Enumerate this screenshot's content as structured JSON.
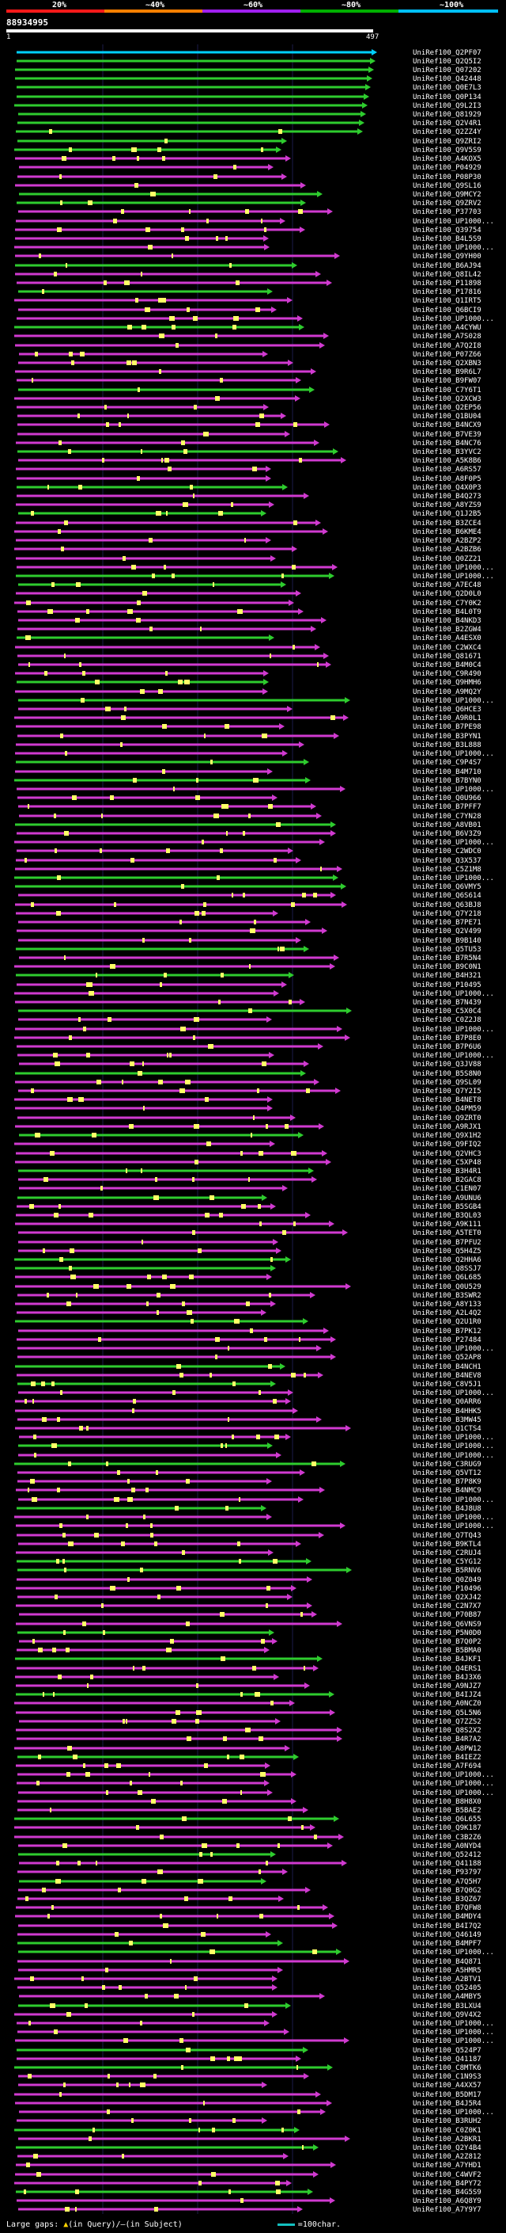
{
  "legend": {
    "marks": [
      "20%",
      "~40%",
      "~60%",
      "~80%",
      "~100%"
    ],
    "colors": [
      "#ff1a1a",
      "#ff8000",
      "#a020f0",
      "#00b000",
      "#00c0ff"
    ]
  },
  "query": {
    "id": "88934995",
    "start": "1",
    "end": "497"
  },
  "footer": {
    "gaps_text": "Large gaps: ",
    "query_glyph": "▲",
    "query_text": "(in Query)/",
    "subject_glyph": "—",
    "subject_text": "(in Subject)",
    "scale_text": "=100char."
  },
  "hit_colors": {
    "top": "#00d0ff",
    "green": "#2ecc2e",
    "magenta": "#d03ad0",
    "insert_mark": "#ffff66"
  },
  "hits": [
    "UniRef100_Q2PF07",
    "UniRef100_Q2Q5I2",
    "UniRef100_Q07202",
    "UniRef100_Q42448",
    "UniRef100_Q0E7L3",
    "UniRef100_Q0P134",
    "UniRef100_Q9L2I3",
    "UniRef100_Q81929",
    "UniRef100_Q2V4R1",
    "UniRef100_Q2ZZ4Y",
    "UniRef100_Q9ZRI2",
    "UniRef100_Q9V5S9",
    "UniRef100_A4KOX5",
    "UniRef100_P04929",
    "UniRef100_P08P30",
    "UniRef100_Q9SL16",
    "UniRef100_Q9MCY2",
    "UniRef100_Q9ZRV2",
    "UniRef100_P37703",
    "UniRef100_UP1000...",
    "UniRef100_Q39754",
    "UniRef100_B4L5S9",
    "UniRef100_UP1000...",
    "UniRef100_Q9YH00",
    "UniRef100_B6AJ94",
    "UniRef100_Q8IL42",
    "UniRef100_P11898",
    "UniRef100_P17816",
    "UniRef100_Q1IRT5",
    "UniRef100_Q6BCI9",
    "UniRef100_UP1000...",
    "UniRef100_A4CYWU",
    "UniRef100_A7S028",
    "UniRef100_A7Q2I8",
    "UniRef100_P07Z66",
    "UniRef100_Q2XBN3",
    "UniRef100_B9R6L7",
    "UniRef100_B9FW07",
    "UniRef100_C7Y6T1",
    "UniRef100_Q2XCW3",
    "UniRef100_Q2EP56",
    "UniRef100_Q1BU04",
    "UniRef100_B4NCX9",
    "UniRef100_B7VE39",
    "UniRef100_B4NC76",
    "UniRef100_B3YVC2",
    "UniRef100_A5K8B6",
    "UniRef100_A6RS57",
    "UniRef100_A8F0P5",
    "UniRef100_Q4X0P3",
    "UniRef100_B4Q273",
    "UniRef100_A8YZS9",
    "UniRef100_Q1J2B5",
    "UniRef100_B3ZCE4",
    "UniRef100_B6KME4",
    "UniRef100_A2BZP2",
    "UniRef100_A2BZB6",
    "UniRef100_Q0ZZ21",
    "UniRef100_UP1000...",
    "UniRef100_UP1000...",
    "UniRef100_A7EC48",
    "UniRef100_Q2D0L0",
    "UniRef100_C7Y0K2",
    "UniRef100_B4L0T9",
    "UniRef100_B4NKD3",
    "UniRef100_B2ZGW4",
    "UniRef100_A4ESX0",
    "UniRef100_C2WXC4",
    "UniRef100_Q81671",
    "UniRef100_B4M0C4",
    "UniRef100_C9R490",
    "UniRef100_Q9HMH6",
    "UniRef100_A9MQ2Y",
    "UniRef100_UP1000...",
    "UniRef100_Q6HCE3",
    "UniRef100_A9R0L1",
    "UniRef100_B7PE98",
    "UniRef100_B3PYN1",
    "UniRef100_B3L888",
    "UniRef100_UP1000...",
    "UniRef100_C9P4S7",
    "UniRef100_B4M710",
    "UniRef100_B7BYN0",
    "UniRef100_UP1000...",
    "UniRef100_Q0U966",
    "UniRef100_B7PFF7",
    "UniRef100_C7YN28",
    "UniRef100_A8VB01",
    "UniRef100_B6V3Z9",
    "UniRef100_UP1000...",
    "UniRef100_C2WDC0",
    "UniRef100_Q3X537",
    "UniRef100_C5Z1M8",
    "UniRef100_UP1000...",
    "UniRef100_Q6VMY5",
    "UniRef100_Q6S614",
    "UniRef100_Q63BJ8",
    "UniRef100_Q7Y218",
    "UniRef100_B7PE71",
    "UniRef100_Q2V499",
    "UniRef100_B9B140",
    "UniRef100_Q5TU53",
    "UniRef100_B7R5N4",
    "UniRef100_B9C0N1",
    "UniRef100_B4H321",
    "UniRef100_P10495",
    "UniRef100_UP1000...",
    "UniRef100_B7N439",
    "UniRef100_C5X0C4",
    "UniRef100_C0Z2J8",
    "UniRef100_UP1000...",
    "UniRef100_B7P8E0",
    "UniRef100_B7P6U6",
    "UniRef100_UP1000...",
    "UniRef100_Q3JV88",
    "UniRef100_B5S8N0",
    "UniRef100_Q9SL09",
    "UniRef100_Q7Y2I5",
    "UniRef100_B4NET8",
    "UniRef100_Q4PM59",
    "UniRef100_Q9ZRT0",
    "UniRef100_A9RJX1",
    "UniRef100_Q9X1H2",
    "UniRef100_Q9FIQ2",
    "UniRef100_Q2VHC3",
    "UniRef100_C5XP48",
    "UniRef100_B3H4R1",
    "UniRef100_B2GAC8",
    "UniRef100_C1EN07",
    "UniRef100_A9UNU6",
    "UniRef100_B5SGB4",
    "UniRef100_B3QL03",
    "UniRef100_A9K111",
    "UniRef100_A5TET0",
    "UniRef100_B7PFU2",
    "UniRef100_Q5H4Z5",
    "UniRef100_Q2HHA6",
    "UniRef100_Q8SSJ7",
    "UniRef100_Q6L685",
    "UniRef100_Q0U529",
    "UniRef100_B3SWR2",
    "UniRef100_A8Y133",
    "UniRef100_A2L4Q2",
    "UniRef100_Q2U1R0",
    "UniRef100_B7PK12",
    "UniRef100_P27484",
    "UniRef100_UP1000...",
    "UniRef100_Q52AP8",
    "UniRef100_B4NCH1",
    "UniRef100_B4NEV8",
    "UniRef100_C8V5J1",
    "UniRef100_UP1000...",
    "UniRef100_Q0ARR6",
    "UniRef100_B4HHK5",
    "UniRef100_B3MW45",
    "UniRef100_Q1CTS4",
    "UniRef100_UP1000...",
    "UniRef100_UP1000...",
    "UniRef100_UP1000...",
    "UniRef100_C3RUG9",
    "UniRef100_Q5VT12",
    "UniRef100_B7P8K9",
    "UniRef100_B4NMC9",
    "UniRef100_UP1000...",
    "UniRef100_B4J8U8",
    "UniRef100_UP1000...",
    "UniRef100_UP1000...",
    "UniRef100_Q7TQ43",
    "UniRef100_B9KTL4",
    "UniRef100_C2RUJ4",
    "UniRef100_C5YG12",
    "UniRef100_B5RNV6",
    "UniRef100_Q0Z049",
    "UniRef100_P10496",
    "UniRef100_Q2XJ42",
    "UniRef100_C2N7X7",
    "UniRef100_P70B87",
    "UniRef100_Q6VNS9",
    "UniRef100_P5N0D0",
    "UniRef100_B7Q0P2",
    "UniRef100_B5BMA0",
    "UniRef100_B4JKF1",
    "UniRef100_Q4ERS1",
    "UniRef100_B4J3X6",
    "UniRef100_A9NJZ7",
    "UniRef100_B4IJZ4",
    "UniRef100_A0NCZ0",
    "UniRef100_Q5L5N6",
    "UniRef100_Q7ZZS2",
    "UniRef100_Q8S2X2",
    "UniRef100_B4R7A2",
    "UniRef100_A8PW12",
    "UniRef100_B4IEZ2",
    "UniRef100_A7F694",
    "UniRef100_UP1000...",
    "UniRef100_UP1000...",
    "UniRef100_UP1000...",
    "UniRef100_B8H8X0",
    "UniRef100_B5BAE2",
    "UniRef100_Q6L655",
    "UniRef100_Q9K187",
    "UniRef100_C3B2Z6",
    "UniRef100_A0NYD4",
    "UniRef100_Q52412",
    "UniRef100_Q41188",
    "UniRef100_P93797",
    "UniRef100_A7Q5H7",
    "UniRef100_B7Q0G2",
    "UniRef100_B3QZ67",
    "UniRef100_B7QFW8",
    "UniRef100_B4MDY4",
    "UniRef100_B4I7Q2",
    "UniRef100_Q46149",
    "UniRef100_B4MPF7",
    "UniRef100_UP1000...",
    "UniRef100_B4Q871",
    "UniRef100_A5HMR5",
    "UniRef100_A2BTV1",
    "UniRef100_Q52405",
    "UniRef100_A4MBY5",
    "UniRef100_B3LXU4",
    "UniRef100_Q9V4X2",
    "UniRef100_UP1000...",
    "UniRef100_UP1000...",
    "UniRef100_UP1000...",
    "UniRef100_Q524P7",
    "UniRef100_Q41187",
    "UniRef100_C8MTK6",
    "UniRef100_C1N9S3",
    "UniRef100_A4XX57",
    "UniRef100_B5DM17",
    "UniRef100_B4J5R4",
    "UniRef100_UP1000...",
    "UniRef100_B3RUH2",
    "UniRef100_C0Z0K1",
    "UniRef100_A2BKR1",
    "UniRef100_Q2Y4B4",
    "UniRef100_A2Z812",
    "UniRef100_A7YHD1",
    "UniRef100_C4WVF2",
    "UniRef100_B4PY72",
    "UniRef100_B4G5S9",
    "UniRef100_A6Q8Y9",
    "UniRef100_A7Y9Y7"
  ]
}
